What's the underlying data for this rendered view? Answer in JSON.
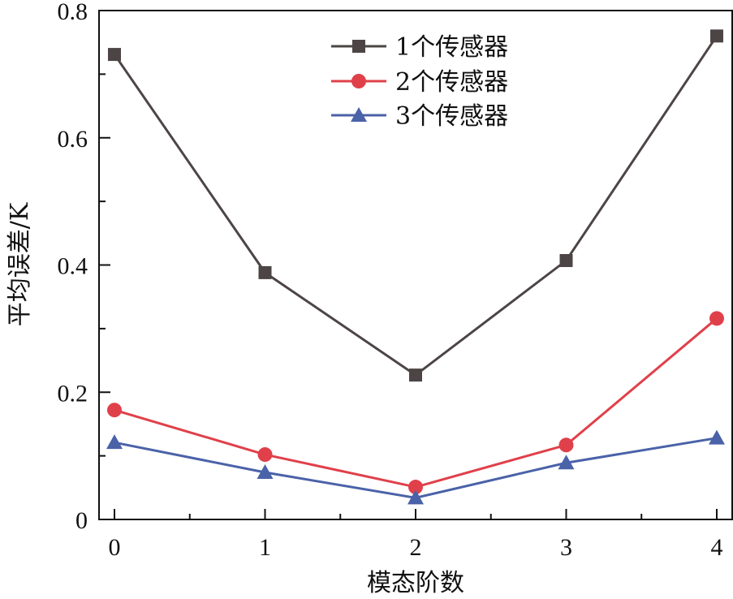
{
  "chart_data": {
    "type": "line",
    "title": "",
    "xlabel": "模态阶数",
    "ylabel": "平均误差/K",
    "x": [
      0,
      1,
      2,
      3,
      4
    ],
    "x_tick_labels": [
      "0",
      "1",
      "2",
      "3",
      "4"
    ],
    "y_tick_labels": [
      "0",
      "0.2",
      "0.4",
      "0.6",
      "0.8"
    ],
    "y_ticks": [
      0,
      0.2,
      0.4,
      0.6,
      0.8
    ],
    "xlim": [
      -0.1,
      4.1
    ],
    "ylim": [
      0,
      0.8
    ],
    "grid": false,
    "legend_position": "upper center",
    "series": [
      {
        "name": "1个传感器",
        "marker": "square",
        "color": "#4d4545",
        "values": [
          0.731,
          0.388,
          0.227,
          0.407,
          0.76
        ]
      },
      {
        "name": "2个传感器",
        "marker": "circle",
        "color": "#e0404a",
        "values": [
          0.172,
          0.102,
          0.051,
          0.117,
          0.316
        ]
      },
      {
        "name": "3个传感器",
        "marker": "triangle",
        "color": "#4a62a8",
        "values": [
          0.121,
          0.074,
          0.034,
          0.089,
          0.128
        ]
      }
    ]
  }
}
